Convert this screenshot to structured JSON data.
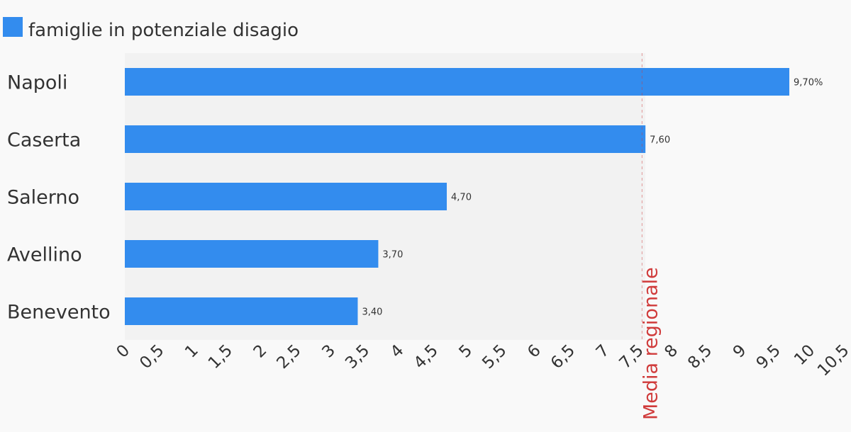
{
  "legend": {
    "label": "famiglie in potenziale disagio",
    "color": "#338cee"
  },
  "reference_line": {
    "label": "Media regionale",
    "value": 7.55,
    "color": "#d03b3b"
  },
  "chart_data": {
    "type": "bar",
    "orientation": "horizontal",
    "categories": [
      "Napoli",
      "Caserta",
      "Salerno",
      "Avellino",
      "Benevento"
    ],
    "series": [
      {
        "name": "famiglie in potenziale disagio",
        "values": [
          9.7,
          7.6,
          4.7,
          3.7,
          3.4
        ],
        "data_labels": [
          "9,70%",
          "7,60",
          "4,70",
          "3,70",
          "3,40"
        ],
        "color": "#338cee"
      }
    ],
    "x_ticks": [
      "0",
      "0,5",
      "1",
      "1,5",
      "2",
      "2,5",
      "3",
      "3,5",
      "4",
      "4,5",
      "5",
      "5,5",
      "6",
      "6,5",
      "7",
      "7,5",
      "8",
      "8,5",
      "9",
      "9,5",
      "10",
      "10,5"
    ],
    "xlim": [
      0,
      10.5
    ],
    "grid": false,
    "legend_position": "top-left",
    "plot_background": "#f2f2f2"
  }
}
